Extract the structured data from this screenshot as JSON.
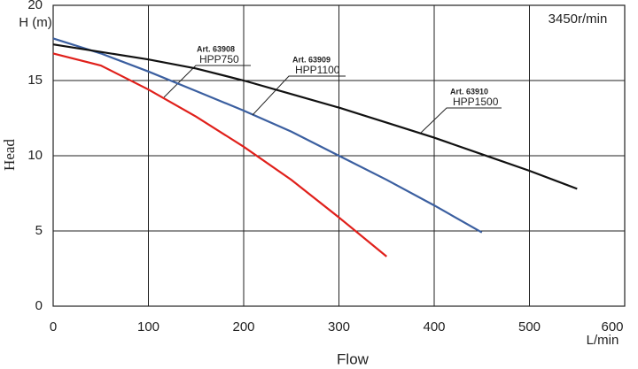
{
  "chart_data": {
    "type": "line",
    "annotation": "3450r/min",
    "y_label_top": "H (m)",
    "y_label": "Head",
    "x_label": "Flow",
    "x_unit": "L/min",
    "xlim": [
      0,
      600
    ],
    "xticks": [
      0,
      100,
      200,
      300,
      400,
      500,
      600
    ],
    "ylim": [
      0,
      20
    ],
    "yticks": [
      0,
      5,
      10,
      15,
      20
    ],
    "grid": true,
    "series": [
      {
        "name": "HPP750",
        "label": "Art. 63908",
        "color": "#e0201b",
        "x": [
          0,
          50,
          100,
          150,
          200,
          250,
          300,
          350
        ],
        "values": [
          16.8,
          16.0,
          14.4,
          12.6,
          10.6,
          8.4,
          5.9,
          3.3
        ]
      },
      {
        "name": "HPP1100",
        "label": "Art. 63909",
        "color": "#3b5fa0",
        "x": [
          0,
          50,
          100,
          150,
          200,
          250,
          300,
          350,
          400,
          450
        ],
        "values": [
          17.8,
          16.8,
          15.6,
          14.3,
          13.0,
          11.6,
          10.0,
          8.4,
          6.7,
          4.9
        ]
      },
      {
        "name": "HPP1500",
        "label": "Art. 63910",
        "color": "#111111",
        "x": [
          0,
          50,
          100,
          150,
          200,
          250,
          300,
          350,
          400,
          450,
          500,
          550
        ],
        "values": [
          17.4,
          16.9,
          16.4,
          15.8,
          15.0,
          14.1,
          13.2,
          12.2,
          11.2,
          10.1,
          9.0,
          7.8
        ]
      }
    ]
  }
}
